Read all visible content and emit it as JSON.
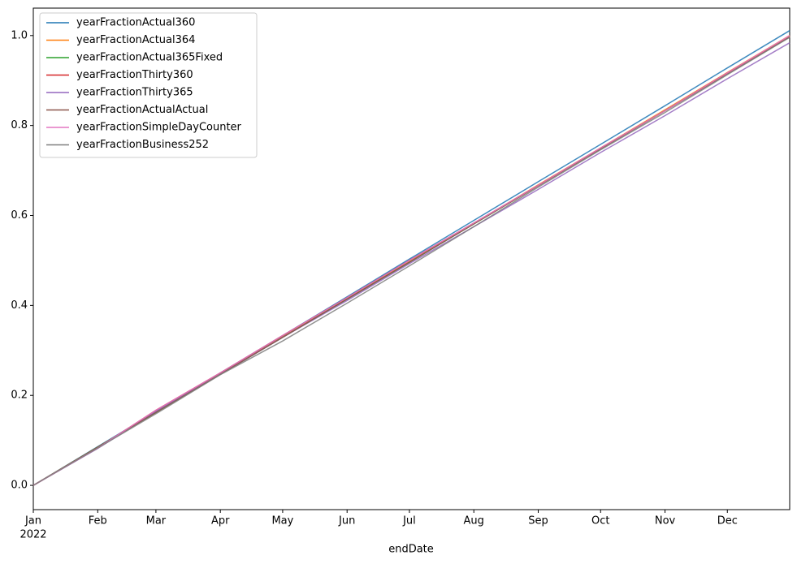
{
  "chart_data": {
    "type": "line",
    "x_label": "endDate",
    "x_year_label": "2022",
    "x": [
      "2022-01",
      "2022-02",
      "2022-03",
      "2022-04",
      "2022-05",
      "2022-06",
      "2022-07",
      "2022-08",
      "2022-09",
      "2022-10",
      "2022-11",
      "2022-12",
      "2022-12-31"
    ],
    "xlim": [
      "2022-01",
      "2022-12-31"
    ],
    "xticks": [
      {
        "value": "2022-01",
        "label": "Jan"
      },
      {
        "value": "2022-02",
        "label": "Feb"
      },
      {
        "value": "2022-03",
        "label": "Mar"
      },
      {
        "value": "2022-04",
        "label": "Apr"
      },
      {
        "value": "2022-05",
        "label": "May"
      },
      {
        "value": "2022-06",
        "label": "Jun"
      },
      {
        "value": "2022-07",
        "label": "Jul"
      },
      {
        "value": "2022-08",
        "label": "Aug"
      },
      {
        "value": "2022-09",
        "label": "Sep"
      },
      {
        "value": "2022-10",
        "label": "Oct"
      },
      {
        "value": "2022-11",
        "label": "Nov"
      },
      {
        "value": "2022-12",
        "label": "Dec"
      }
    ],
    "ylim": [
      -0.054,
      1.061
    ],
    "yticks": [
      {
        "value": 0,
        "label": "0.0"
      },
      0.2,
      0.4,
      0.6,
      0.8,
      {
        "value": 1,
        "label": "1.0"
      }
    ],
    "legend": "upper left",
    "series": [
      {
        "name": "yearFractionActual360",
        "color": "#1f77b4",
        "values": [
          0,
          0.086,
          0.164,
          0.25,
          0.333,
          0.419,
          0.503,
          0.589,
          0.675,
          0.758,
          0.844,
          0.928,
          1.011
        ]
      },
      {
        "name": "yearFractionActual364",
        "color": "#ff7f0e",
        "values": [
          0,
          0.085,
          0.162,
          0.247,
          0.33,
          0.415,
          0.497,
          0.582,
          0.668,
          0.75,
          0.835,
          0.918,
          1.0
        ]
      },
      {
        "name": "yearFractionActual365Fixed",
        "color": "#2ca02c",
        "values": [
          0,
          0.085,
          0.162,
          0.247,
          0.329,
          0.414,
          0.496,
          0.581,
          0.666,
          0.748,
          0.833,
          0.915,
          0.997
        ]
      },
      {
        "name": "yearFractionThirty360",
        "color": "#d62728",
        "values": [
          0,
          0.083,
          0.167,
          0.25,
          0.333,
          0.417,
          0.5,
          0.583,
          0.667,
          0.75,
          0.833,
          0.917,
          0.997
        ]
      },
      {
        "name": "yearFractionThirty365",
        "color": "#9467bd",
        "values": [
          0,
          0.082,
          0.164,
          0.247,
          0.329,
          0.411,
          0.493,
          0.575,
          0.658,
          0.74,
          0.822,
          0.904,
          0.984
        ]
      },
      {
        "name": "yearFractionActualActual",
        "color": "#8c564b",
        "values": [
          0,
          0.085,
          0.162,
          0.247,
          0.329,
          0.414,
          0.496,
          0.581,
          0.666,
          0.748,
          0.833,
          0.915,
          0.997
        ]
      },
      {
        "name": "yearFractionSimpleDayCounter",
        "color": "#e377c2",
        "values": [
          0,
          0.083,
          0.167,
          0.25,
          0.333,
          0.417,
          0.5,
          0.583,
          0.667,
          0.75,
          0.833,
          0.917,
          1.0
        ]
      },
      {
        "name": "yearFractionBusiness252",
        "color": "#7f7f7f",
        "values": [
          0,
          0.083,
          0.159,
          0.246,
          0.321,
          0.405,
          0.488,
          0.575,
          0.663,
          0.746,
          0.829,
          0.913,
          0.996
        ]
      }
    ]
  }
}
